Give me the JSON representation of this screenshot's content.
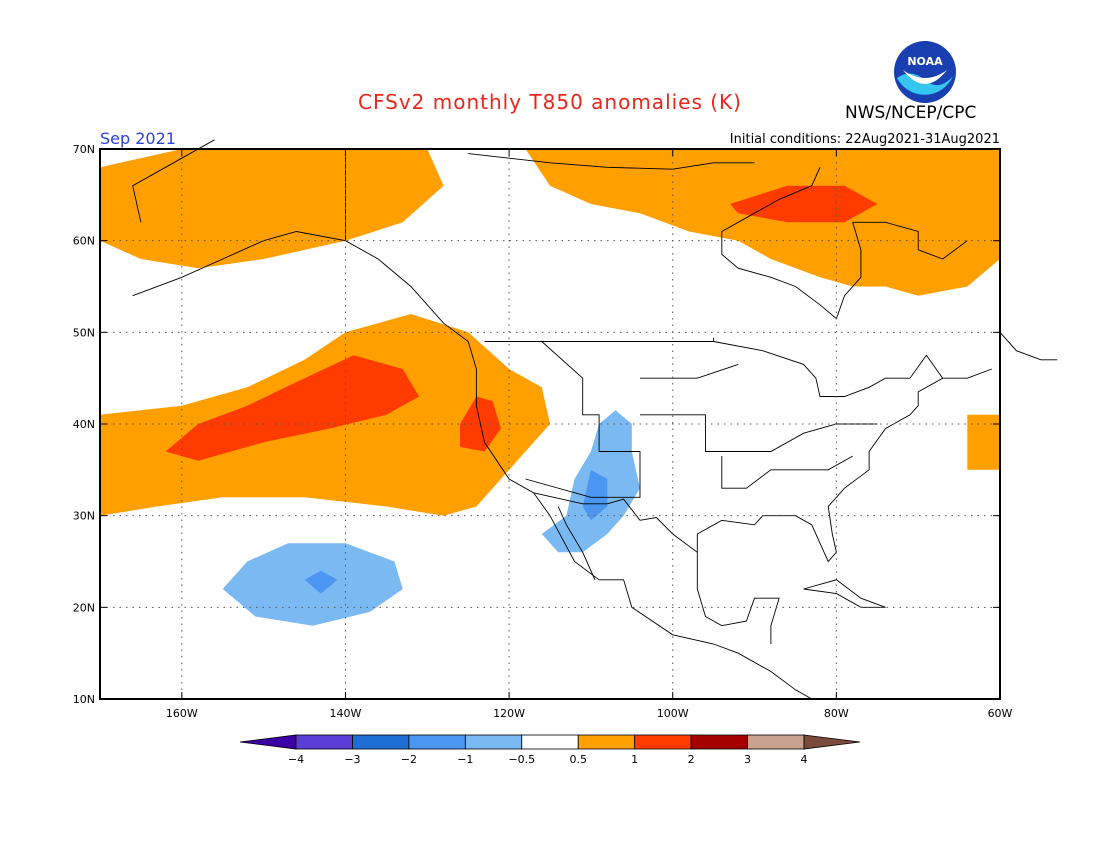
{
  "header": {
    "title": "CFSv2 monthly T850 anomalies (K)",
    "organization": "NWS/NCEP/CPC",
    "logo_text": "NOAA",
    "month": "Sep 2021",
    "initial_conditions": "Initial conditions: 22Aug2021-31Aug2021"
  },
  "map": {
    "lat_range": [
      10,
      70
    ],
    "lon_range": [
      -170,
      -60
    ],
    "lat_ticks": [
      {
        "value": 70,
        "label": "70N"
      },
      {
        "value": 60,
        "label": "60N"
      },
      {
        "value": 50,
        "label": "50N"
      },
      {
        "value": 40,
        "label": "40N"
      },
      {
        "value": 30,
        "label": "30N"
      },
      {
        "value": 20,
        "label": "20N"
      },
      {
        "value": 10,
        "label": "10N"
      }
    ],
    "lon_ticks": [
      {
        "value": -160,
        "label": "160W"
      },
      {
        "value": -140,
        "label": "140W"
      },
      {
        "value": -120,
        "label": "120W"
      },
      {
        "value": -100,
        "label": "100W"
      },
      {
        "value": -80,
        "label": "80W"
      },
      {
        "value": -60,
        "label": "60W"
      }
    ],
    "anomaly_regions": [
      {
        "name": "alaska-warm",
        "level": "0.5-1",
        "color": "#ff9f00",
        "polygon": [
          [
            -170,
            68
          ],
          [
            -160,
            70
          ],
          [
            -140,
            70
          ],
          [
            -130,
            70
          ],
          [
            -128,
            66
          ],
          [
            -133,
            62
          ],
          [
            -140,
            60
          ],
          [
            -150,
            58
          ],
          [
            -158,
            57
          ],
          [
            -165,
            58
          ],
          [
            -170,
            60
          ]
        ]
      },
      {
        "name": "canada-arctic-warm",
        "level": "0.5-1",
        "color": "#ff9f00",
        "polygon": [
          [
            -118,
            70
          ],
          [
            -60,
            70
          ],
          [
            -60,
            58
          ],
          [
            -64,
            55
          ],
          [
            -70,
            54
          ],
          [
            -74,
            55
          ],
          [
            -78,
            55
          ],
          [
            -82,
            56
          ],
          [
            -88,
            58
          ],
          [
            -92,
            60
          ],
          [
            -98,
            61
          ],
          [
            -104,
            63
          ],
          [
            -110,
            64
          ],
          [
            -115,
            66
          ]
        ]
      },
      {
        "name": "hudson-warm-strong",
        "level": "1-2",
        "color": "#ff3b00",
        "polygon": [
          [
            -93,
            64
          ],
          [
            -86,
            66
          ],
          [
            -79,
            66
          ],
          [
            -75,
            64
          ],
          [
            -79,
            62
          ],
          [
            -86,
            62
          ],
          [
            -92,
            63
          ]
        ]
      },
      {
        "name": "pacific-warm",
        "level": "0.5-1",
        "color": "#ff9f00",
        "polygon": [
          [
            -170,
            41
          ],
          [
            -160,
            42
          ],
          [
            -152,
            44
          ],
          [
            -145,
            47
          ],
          [
            -140,
            50
          ],
          [
            -132,
            52
          ],
          [
            -125,
            50
          ],
          [
            -120,
            46
          ],
          [
            -116,
            44
          ],
          [
            -115,
            40
          ],
          [
            -118,
            37
          ],
          [
            -121,
            34
          ],
          [
            -124,
            31
          ],
          [
            -128,
            30
          ],
          [
            -135,
            31
          ],
          [
            -145,
            32
          ],
          [
            -155,
            32
          ],
          [
            -163,
            31
          ],
          [
            -170,
            30
          ]
        ]
      },
      {
        "name": "pacific-warm-strong",
        "level": "1-2",
        "color": "#ff3b00",
        "polygon": [
          [
            -162,
            37
          ],
          [
            -158,
            40
          ],
          [
            -152,
            42
          ],
          [
            -145,
            45
          ],
          [
            -139,
            47.5
          ],
          [
            -133,
            46
          ],
          [
            -131,
            43
          ],
          [
            -135,
            41
          ],
          [
            -142,
            39.5
          ],
          [
            -150,
            38
          ],
          [
            -158,
            36
          ]
        ]
      },
      {
        "name": "california-warm-strong",
        "level": "1-2",
        "color": "#ff3b00",
        "polygon": [
          [
            -126,
            40
          ],
          [
            -124,
            43
          ],
          [
            -122,
            42.5
          ],
          [
            -121,
            39.5
          ],
          [
            -123,
            37
          ],
          [
            -126,
            37.5
          ]
        ]
      },
      {
        "name": "atlantic-warm",
        "level": "0.5-1",
        "color": "#ff9f00",
        "polygon": [
          [
            -64,
            41
          ],
          [
            -60,
            41
          ],
          [
            -60,
            35
          ],
          [
            -64,
            35
          ]
        ]
      },
      {
        "name": "southwest-cool",
        "level": "-1--0.5",
        "color": "#7ab9f2",
        "polygon": [
          [
            -116,
            28
          ],
          [
            -113,
            30
          ],
          [
            -112,
            34
          ],
          [
            -110,
            37
          ],
          [
            -109,
            40
          ],
          [
            -107,
            41.5
          ],
          [
            -105,
            40
          ],
          [
            -105,
            37
          ],
          [
            -104,
            33
          ],
          [
            -106,
            30
          ],
          [
            -108,
            28
          ],
          [
            -111,
            26
          ],
          [
            -114,
            26
          ]
        ]
      },
      {
        "name": "southwest-cool-strong",
        "level": "-2--1",
        "color": "#4a96f0",
        "polygon": [
          [
            -111,
            31
          ],
          [
            -110,
            35
          ],
          [
            -108,
            34
          ],
          [
            -108,
            31
          ],
          [
            -110,
            29.5
          ]
        ]
      },
      {
        "name": "subtropical-pacific-cool",
        "level": "-1--0.5",
        "color": "#7ab9f2",
        "polygon": [
          [
            -155,
            22
          ],
          [
            -152,
            25
          ],
          [
            -147,
            27
          ],
          [
            -140,
            27
          ],
          [
            -134,
            25
          ],
          [
            -133,
            22
          ],
          [
            -137,
            19.5
          ],
          [
            -144,
            18
          ],
          [
            -151,
            19
          ]
        ]
      },
      {
        "name": "subtropical-pacific-cool-strong",
        "level": "-2--1",
        "color": "#4a96f0",
        "polygon": [
          [
            -145,
            23
          ],
          [
            -143,
            24
          ],
          [
            -141,
            23
          ],
          [
            -143,
            21.5
          ]
        ]
      }
    ]
  },
  "colorbar": {
    "colors": [
      "#3b00a6",
      "#5b3ed6",
      "#1e6ed6",
      "#4a96f0",
      "#7ab9f2",
      "#ffffff",
      "#ff9f00",
      "#ff3b00",
      "#a50000",
      "#c9a191",
      "#7a4b3a"
    ],
    "labels": [
      "−4",
      "−3",
      "−2",
      "−1",
      "−0.5",
      "0.5",
      "1",
      "2",
      "3",
      "4"
    ]
  }
}
